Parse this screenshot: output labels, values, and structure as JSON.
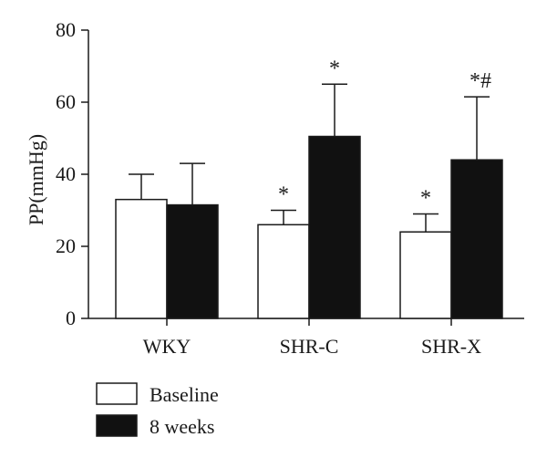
{
  "chart_data": {
    "type": "bar",
    "ylabel": "PP(mmHg)",
    "xlabel": "",
    "ylim": [
      0,
      80
    ],
    "yticks": [
      0,
      20,
      40,
      60,
      80
    ],
    "categories": [
      "WKY",
      "SHR-C",
      "SHR-X"
    ],
    "series": [
      {
        "name": "Baseline",
        "color": "#ffffff",
        "values": [
          33,
          26,
          24
        ],
        "error_upper": [
          40,
          30,
          29
        ],
        "annotations": [
          "",
          "*",
          "*"
        ]
      },
      {
        "name": "8 weeks",
        "color": "#111111",
        "values": [
          31.5,
          50.5,
          44
        ],
        "error_upper": [
          43,
          65,
          61.5
        ],
        "annotations": [
          "",
          "*",
          "*#"
        ]
      }
    ],
    "grid": false,
    "legend_position": "bottom-left"
  }
}
